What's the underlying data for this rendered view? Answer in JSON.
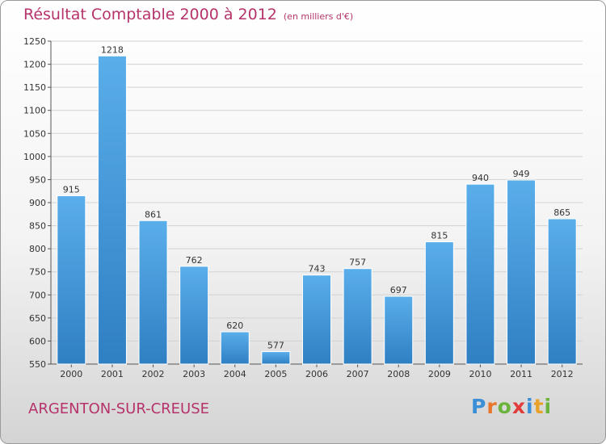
{
  "header": {
    "title": "Résultat Comptable 2000 à 2012",
    "subtitle": "(en milliers d'€)"
  },
  "commune": "ARGENTON-SUR-CREUSE",
  "logo": {
    "text": "Proxiti",
    "letters": [
      {
        "ch": "P",
        "color": "#3b8fd6"
      },
      {
        "ch": "r",
        "color": "#e8762b"
      },
      {
        "ch": "o",
        "color": "#6cb33e"
      },
      {
        "ch": "x",
        "color": "#e23b3b"
      },
      {
        "ch": "i",
        "color": "#3b8fd6"
      },
      {
        "ch": "t",
        "color": "#e8a12b"
      },
      {
        "ch": "i",
        "color": "#6cb33e"
      }
    ]
  },
  "colors": {
    "title": "#b5336a",
    "bar_top": "#5aaeea",
    "bar_bottom": "#2f7fc3",
    "grid": "#d2d2d2"
  },
  "chart_data": {
    "type": "bar",
    "title": "Résultat Comptable 2000 à 2012",
    "subtitle": "(en milliers d'€)",
    "categories": [
      "2000",
      "2001",
      "2002",
      "2003",
      "2004",
      "2005",
      "2006",
      "2007",
      "2008",
      "2009",
      "2010",
      "2011",
      "2012"
    ],
    "values": [
      915,
      1218,
      861,
      762,
      620,
      577,
      743,
      757,
      697,
      815,
      940,
      949,
      865
    ],
    "ylim": [
      550,
      1250
    ],
    "yticks": [
      550,
      600,
      650,
      700,
      750,
      800,
      850,
      900,
      950,
      1000,
      1050,
      1100,
      1150,
      1200,
      1250
    ],
    "grid": true,
    "data_labels": true
  }
}
